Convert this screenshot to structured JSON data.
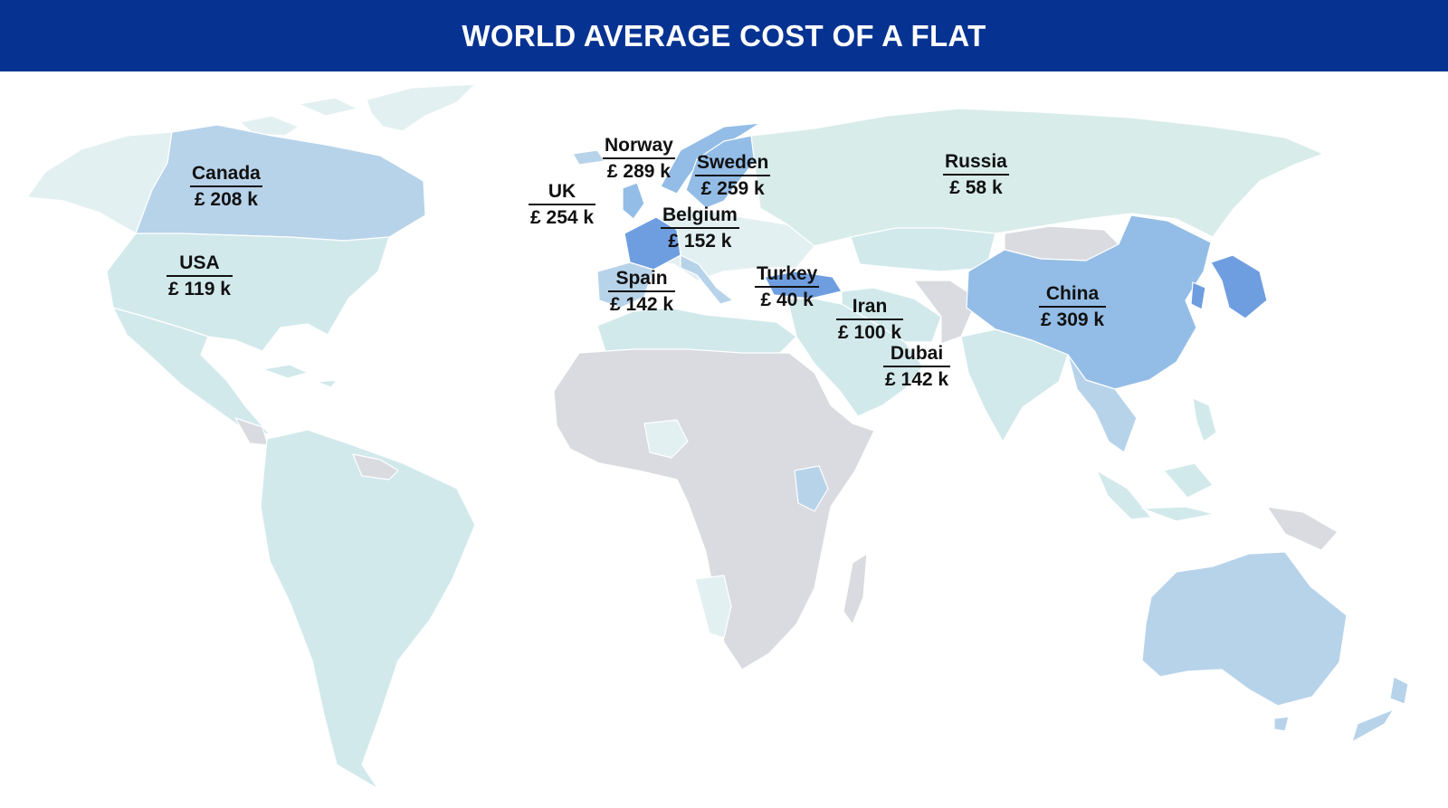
{
  "header": {
    "title": "WORLD AVERAGE COST OF A FLAT",
    "background_color": "#063392"
  },
  "legend_colors": {
    "no_data": "#d9dbe0",
    "lightest": "#e3f0f2",
    "light": "#d2e9ec",
    "medium": "#b7d3ea",
    "strong": "#93bde6",
    "strongest": "#6f9ee0"
  },
  "countries": [
    {
      "name": "Canada",
      "price": "£ 208 k",
      "color": "#b7d3ea"
    },
    {
      "name": "USA",
      "price": "£ 119 k",
      "color": "#d2e9ec"
    },
    {
      "name": "UK",
      "price": "£ 254 k",
      "color": "#93bde6"
    },
    {
      "name": "Norway",
      "price": "£ 289 k",
      "color": "#93bde6"
    },
    {
      "name": "Sweden",
      "price": "£ 259 k",
      "color": "#93bde6"
    },
    {
      "name": "Belgium",
      "price": "£ 152 k",
      "color": "#6f9ee0"
    },
    {
      "name": "Spain",
      "price": "£ 142 k",
      "color": "#b7d3ea"
    },
    {
      "name": "Turkey",
      "price": "£ 40 k",
      "color": "#6f9ee0"
    },
    {
      "name": "Russia",
      "price": "£ 58 k",
      "color": "#d8ecea"
    },
    {
      "name": "Iran",
      "price": "£ 100 k",
      "color": "#d2e9ec"
    },
    {
      "name": "Dubai",
      "price": "£ 142 k",
      "color": "#d2e9ec"
    },
    {
      "name": "China",
      "price": "£ 309 k",
      "color": "#93bde6"
    }
  ]
}
